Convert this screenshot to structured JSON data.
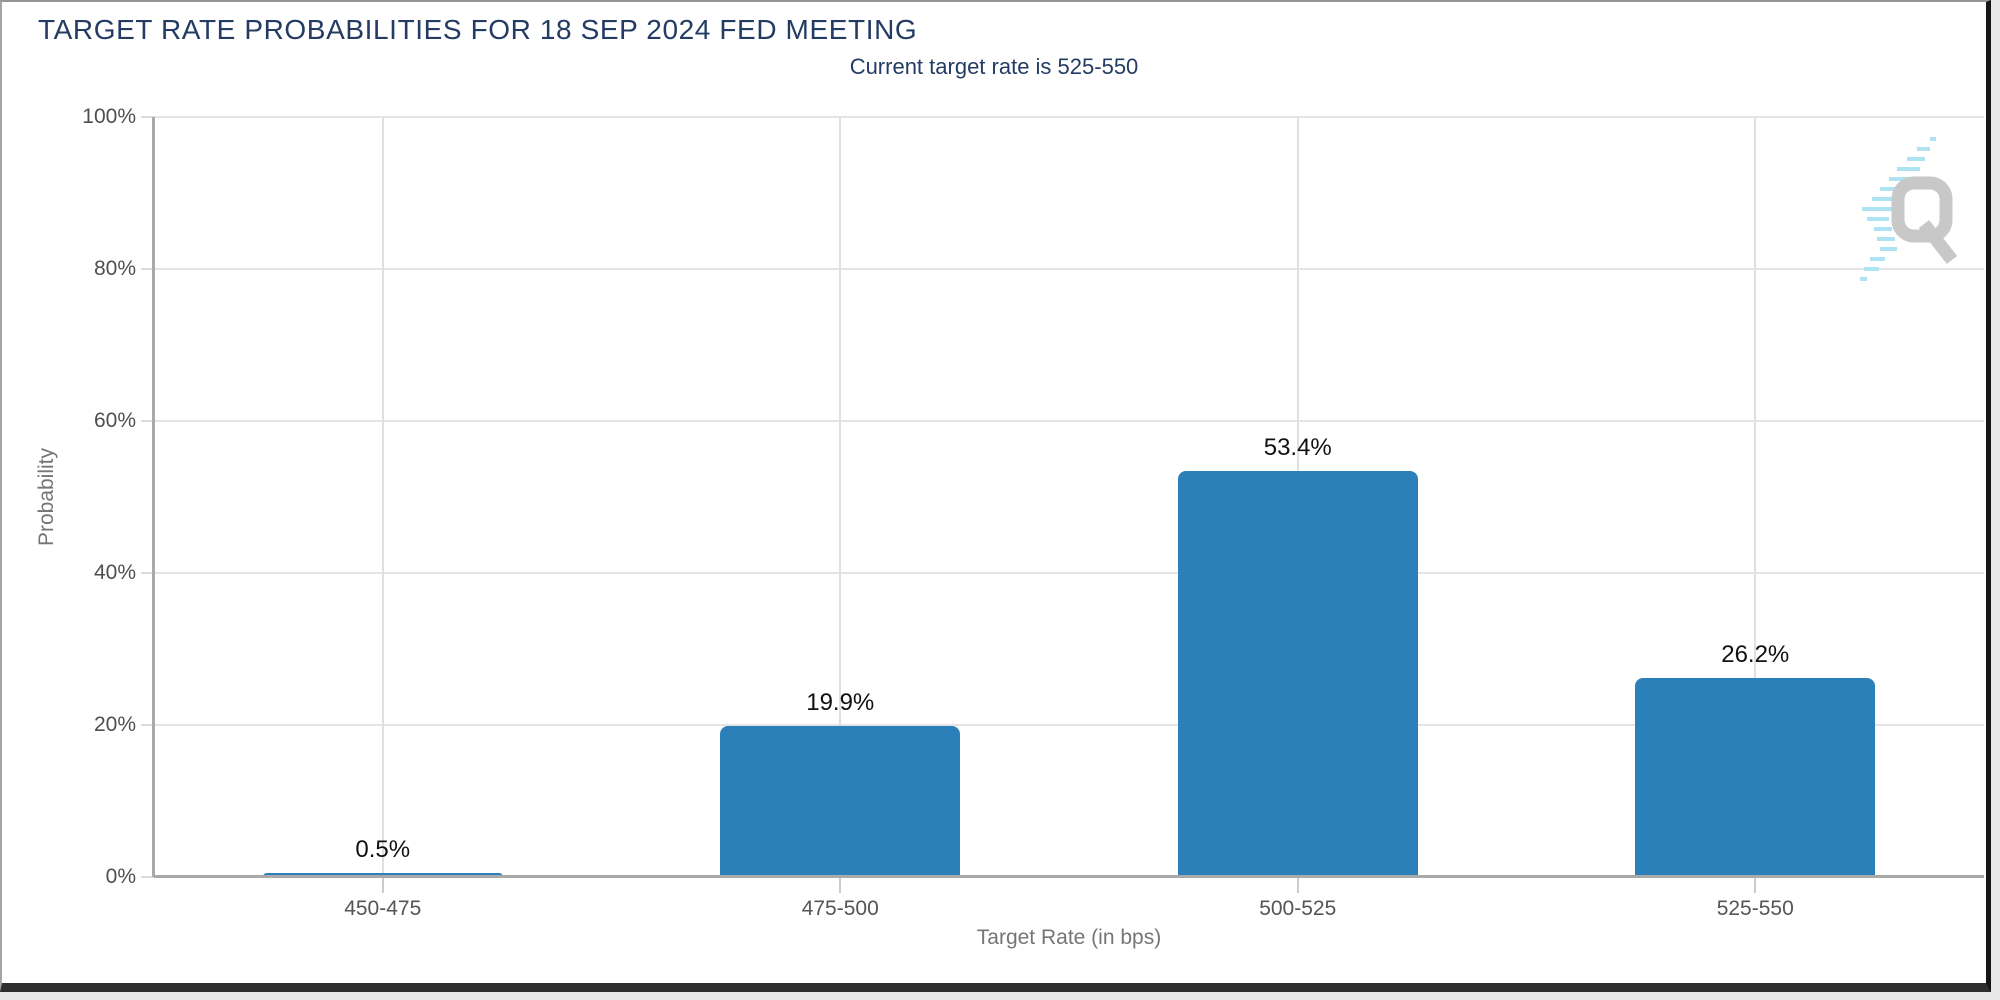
{
  "header": {
    "title": "TARGET RATE PROBABILITIES FOR 18 SEP 2024 FED MEETING",
    "subtitle": "Current target rate is 525-550"
  },
  "chart_data": {
    "type": "bar",
    "title": "TARGET RATE PROBABILITIES FOR 18 SEP 2024 FED MEETING",
    "subtitle": "Current target rate is 525-550",
    "categories": [
      "450-475",
      "475-500",
      "500-525",
      "525-550"
    ],
    "values": [
      0.5,
      19.9,
      53.4,
      26.2
    ],
    "value_labels": [
      "0.5%",
      "19.9%",
      "53.4%",
      "26.2%"
    ],
    "xlabel": "Target Rate (in bps)",
    "ylabel": "Probability",
    "ylim": [
      0,
      100
    ],
    "yticks": [
      0,
      20,
      40,
      60,
      80,
      100
    ],
    "ytick_labels": [
      "0%",
      "20%",
      "40%",
      "60%",
      "80%",
      "100%"
    ],
    "bar_color": "#2b80b9",
    "grid": true,
    "legend_position": "none"
  },
  "logo": {
    "name": "q-watermark",
    "letter_color": "#c8c8c8",
    "stripe_color": "#aee3f4"
  },
  "colors": {
    "title_navy": "#243c63",
    "tick_label_gray": "#4f4f4f",
    "axis_title_gray": "#757575",
    "gridline": "#e4e4e4",
    "axis_line": "#a9a9a9",
    "bar_blue": "#2b80b9",
    "value_label": "#111111",
    "background": "#ffffff"
  }
}
